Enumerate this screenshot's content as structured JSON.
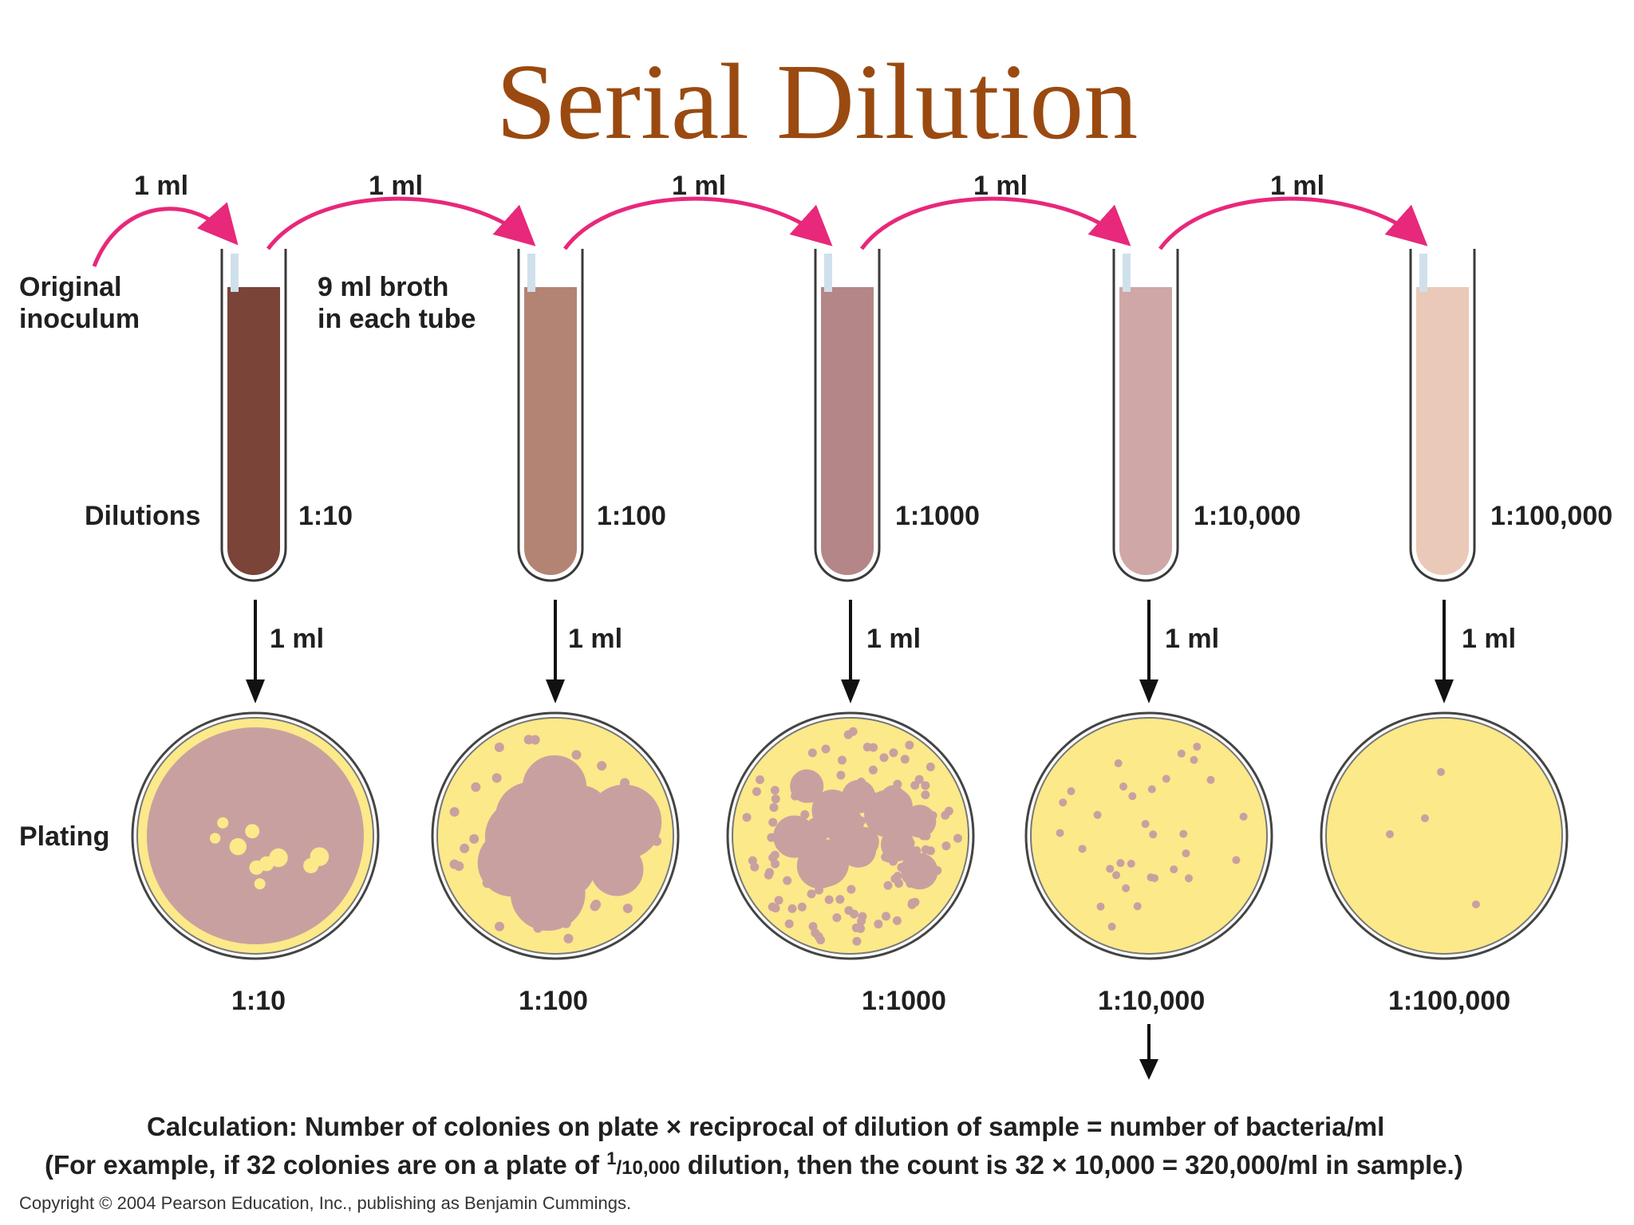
{
  "title": "Serial Dilution",
  "labels": {
    "original_inoculum_line1": "Original",
    "original_inoculum_line2": "inoculum",
    "broth_line1": "9 ml broth",
    "broth_line2": "in each tube",
    "dilutions": "Dilutions",
    "plating": "Plating"
  },
  "transfer_volume": "1 ml",
  "tubes": [
    {
      "dilution": "1:10",
      "fill_color": "#7a4438"
    },
    {
      "dilution": "1:100",
      "fill_color": "#b38474"
    },
    {
      "dilution": "1:1000",
      "fill_color": "#b48688"
    },
    {
      "dilution": "1:10,000",
      "fill_color": "#cfa7a6"
    },
    {
      "dilution": "1:100,000",
      "fill_color": "#ebc9b8"
    }
  ],
  "plates": [
    {
      "dilution": "1:10"
    },
    {
      "dilution": "1:100"
    },
    {
      "dilution": "1:1000"
    },
    {
      "dilution": "1:10,000"
    },
    {
      "dilution": "1:100,000"
    }
  ],
  "colors": {
    "title": "#9a4a10",
    "arrow_pink": "#e8287a",
    "agar": "#fbe98a",
    "colony": "#c9a0a0"
  },
  "calculation": {
    "line1": "Calculation: Number of colonies on plate × reciprocal of dilution of sample = number of bacteria/ml",
    "line2_a": "(For example, if 32 colonies are on a plate of ",
    "line2_sup": "1",
    "line2_frac": "/10,000",
    "line2_b": " dilution, then the count is 32 × 10,000 = 320,000/ml in sample.)"
  },
  "copyright": "Copyright © 2004 Pearson Education, Inc., publishing as Benjamin Cummings."
}
